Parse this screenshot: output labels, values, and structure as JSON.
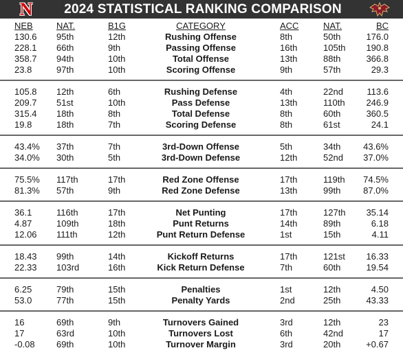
{
  "title": "2024 STATISTICAL RANKING COMPARISON",
  "logos": {
    "left": "N",
    "right_icon": "eagle-icon"
  },
  "colors": {
    "header_bg": "#333333",
    "nebraska_red": "#d00000",
    "bc_maroon": "#8a1c2b",
    "divider": "#666666"
  },
  "columns": {
    "neb": "NEB",
    "nat1": "NAT.",
    "b1g": "B1G",
    "category": "CATEGORY",
    "acc": "ACC",
    "nat2": "NAT.",
    "bc": "BC"
  },
  "rows": [
    {
      "neb": "130.6",
      "nat1": "95th",
      "b1g": "12th",
      "category": "Rushing Offense",
      "acc": "8th",
      "nat2": "50th",
      "bc": "176.0"
    },
    {
      "neb": "228.1",
      "nat1": "66th",
      "b1g": "9th",
      "category": "Passing Offense",
      "acc": "16th",
      "nat2": "105th",
      "bc": "190.8"
    },
    {
      "neb": "358.7",
      "nat1": "94th",
      "b1g": "10th",
      "category": "Total Offense",
      "acc": "13th",
      "nat2": "88th",
      "bc": "366.8"
    },
    {
      "neb": "23.8",
      "nat1": "97th",
      "b1g": "10th",
      "category": "Scoring Offense",
      "acc": "9th",
      "nat2": "57th",
      "bc": "29.3"
    },
    {
      "neb": "105.8",
      "nat1": "12th",
      "b1g": "6th",
      "category": "Rushing Defense",
      "acc": "4th",
      "nat2": "22nd",
      "bc": "113.6"
    },
    {
      "neb": "209.7",
      "nat1": "51st",
      "b1g": "10th",
      "category": "Pass Defense",
      "acc": "13th",
      "nat2": "110th",
      "bc": "246.9"
    },
    {
      "neb": "315.4",
      "nat1": "18th",
      "b1g": "8th",
      "category": "Total Defense",
      "acc": "8th",
      "nat2": "60th",
      "bc": "360.5"
    },
    {
      "neb": "19.8",
      "nat1": "18th",
      "b1g": "7th",
      "category": "Scoring Defense",
      "acc": "8th",
      "nat2": "61st",
      "bc": "24.1"
    },
    {
      "neb": "43.4%",
      "nat1": "37th",
      "b1g": "7th",
      "category": "3rd-Down Offense",
      "acc": "5th",
      "nat2": "34th",
      "bc": "43.6%"
    },
    {
      "neb": "34.0%",
      "nat1": "30th",
      "b1g": "5th",
      "category": "3rd-Down Defense",
      "acc": "12th",
      "nat2": "52nd",
      "bc": "37.0%"
    },
    {
      "neb": "75.5%",
      "nat1": "117th",
      "b1g": "17th",
      "category": "Red Zone Offense",
      "acc": "17th",
      "nat2": "119th",
      "bc": "74.5%"
    },
    {
      "neb": "81.3%",
      "nat1": "57th",
      "b1g": "9th",
      "category": "Red Zone Defense",
      "acc": "13th",
      "nat2": "99th",
      "bc": "87.0%"
    },
    {
      "neb": "36.1",
      "nat1": "116th",
      "b1g": "17th",
      "category": "Net Punting",
      "acc": "17th",
      "nat2": "127th",
      "bc": "35.14"
    },
    {
      "neb": "4.87",
      "nat1": "109th",
      "b1g": "18th",
      "category": "Punt Returns",
      "acc": "14th",
      "nat2": "89th",
      "bc": "6.18"
    },
    {
      "neb": "12.06",
      "nat1": "111th",
      "b1g": "12th",
      "category": "Punt Return Defense",
      "acc": "1st",
      "nat2": "15th",
      "bc": "4.11"
    },
    {
      "neb": "18.43",
      "nat1": "99th",
      "b1g": "14th",
      "category": "Kickoff Returns",
      "acc": "17th",
      "nat2": "121st",
      "bc": "16.33"
    },
    {
      "neb": "22.33",
      "nat1": "103rd",
      "b1g": "16th",
      "category": "Kick Return Defense",
      "acc": "7th",
      "nat2": "60th",
      "bc": "19.54"
    },
    {
      "neb": "6.25",
      "nat1": "79th",
      "b1g": "15th",
      "category": "Penalties",
      "acc": "1st",
      "nat2": "12th",
      "bc": "4.50"
    },
    {
      "neb": "53.0",
      "nat1": "77th",
      "b1g": "15th",
      "category": "Penalty Yards",
      "acc": "2nd",
      "nat2": "25th",
      "bc": "43.33"
    },
    {
      "neb": "16",
      "nat1": "69th",
      "b1g": "9th",
      "category": "Turnovers Gained",
      "acc": "3rd",
      "nat2": "12th",
      "bc": "23"
    },
    {
      "neb": "17",
      "nat1": "63rd",
      "b1g": "10th",
      "category": "Turnovers Lost",
      "acc": "6th",
      "nat2": "42nd",
      "bc": "17"
    },
    {
      "neb": "-0.08",
      "nat1": "69th",
      "b1g": "10th",
      "category": "Turnover Margin",
      "acc": "3rd",
      "nat2": "20th",
      "bc": "+0.67"
    }
  ]
}
